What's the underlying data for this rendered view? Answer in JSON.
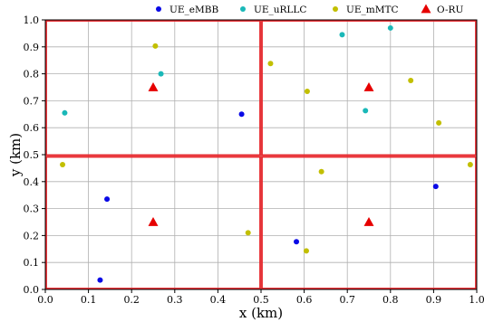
{
  "chart_data": {
    "type": "scatter",
    "title": "",
    "xlabel": "x (km)",
    "ylabel": "y (km)",
    "xlim": [
      0.0,
      1.0
    ],
    "ylim": [
      0.0,
      1.0
    ],
    "xticks": [
      "0.0",
      "0.1",
      "0.2",
      "0.3",
      "0.4",
      "0.5",
      "0.6",
      "0.7",
      "0.8",
      "0.9",
      "1.0"
    ],
    "yticks": [
      "0.0",
      "0.1",
      "0.2",
      "0.3",
      "0.4",
      "0.5",
      "0.6",
      "0.7",
      "0.8",
      "0.9",
      "1.0"
    ],
    "grid": true,
    "legend_position": "top",
    "cell_boundaries": {
      "x": [
        0.0,
        0.5,
        1.0
      ],
      "y": [
        0.0,
        0.495,
        1.0
      ],
      "color": "#e8262b"
    },
    "series": [
      {
        "name": "UE_eMBB",
        "marker": "circle",
        "color": "#0a0ae6",
        "points": [
          [
            0.455,
            0.65
          ],
          [
            0.143,
            0.335
          ],
          [
            0.127,
            0.035
          ],
          [
            0.582,
            0.177
          ],
          [
            0.905,
            0.382
          ]
        ]
      },
      {
        "name": "UE_uRLLC",
        "marker": "circle",
        "color": "#1ab8b8",
        "points": [
          [
            0.045,
            0.655
          ],
          [
            0.268,
            0.8
          ],
          [
            0.688,
            0.945
          ],
          [
            0.8,
            0.97
          ],
          [
            0.742,
            0.663
          ]
        ]
      },
      {
        "name": "UE_mMTC",
        "marker": "circle",
        "color": "#c2bf00",
        "points": [
          [
            0.255,
            0.903
          ],
          [
            0.522,
            0.838
          ],
          [
            0.607,
            0.735
          ],
          [
            0.847,
            0.775
          ],
          [
            0.912,
            0.618
          ],
          [
            0.04,
            0.463
          ],
          [
            0.47,
            0.21
          ],
          [
            0.64,
            0.437
          ],
          [
            0.605,
            0.143
          ],
          [
            0.985,
            0.463
          ]
        ]
      },
      {
        "name": "O-RU",
        "marker": "triangle",
        "color": "#e60000",
        "points": [
          [
            0.25,
            0.75
          ],
          [
            0.75,
            0.75
          ],
          [
            0.25,
            0.25
          ],
          [
            0.75,
            0.25
          ]
        ]
      }
    ]
  }
}
